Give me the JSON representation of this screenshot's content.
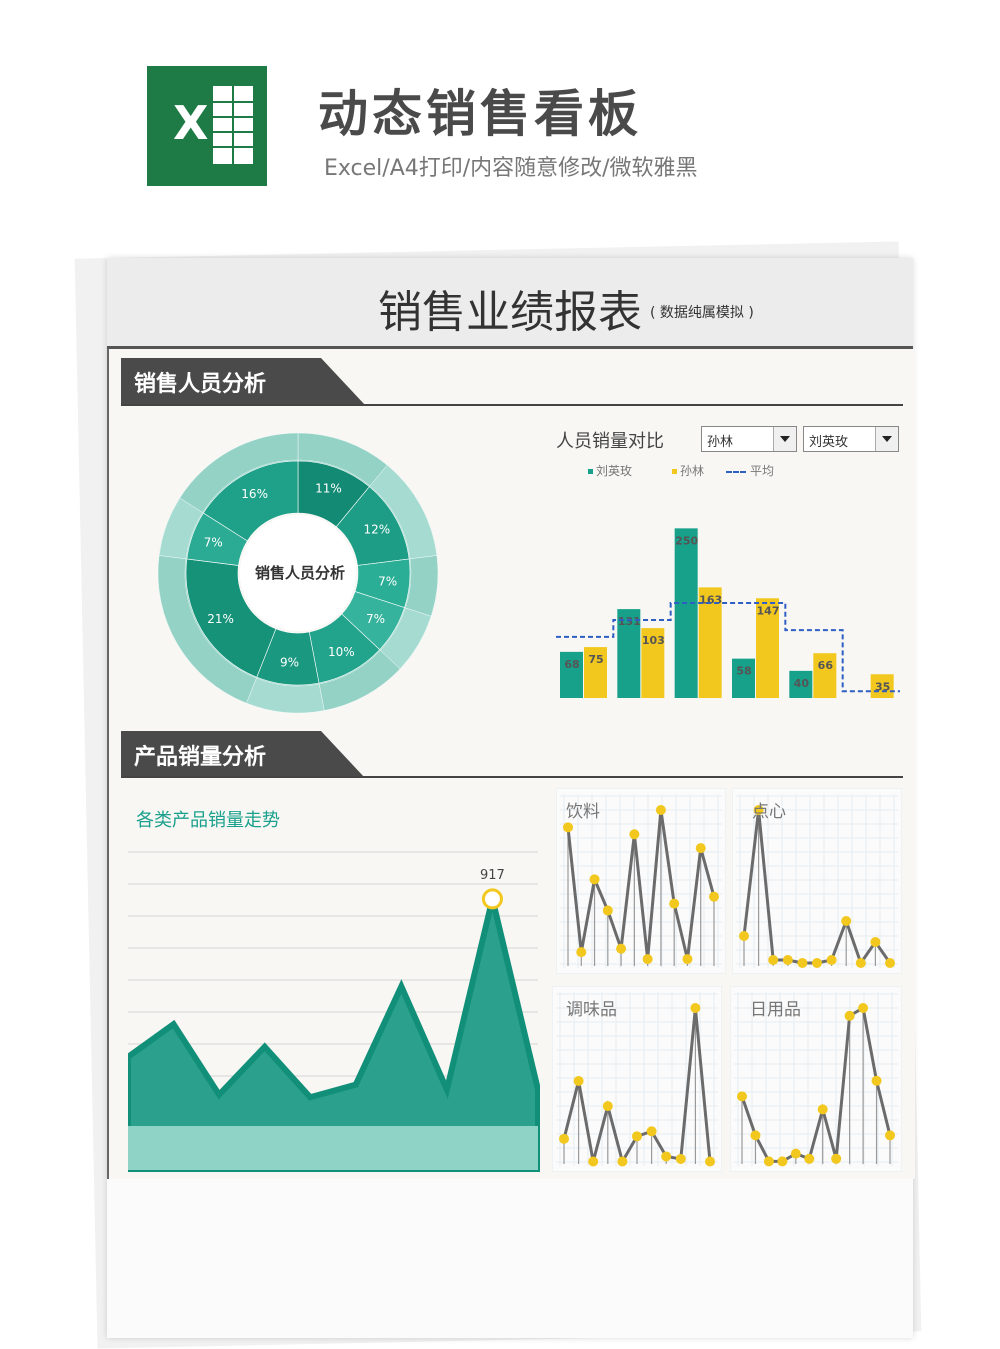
{
  "header": {
    "logo_letter": "X",
    "title": "动态销售看板",
    "subtitle": "Excel/A4打印/内容随意修改/微软雅黑"
  },
  "report": {
    "title": "销售业绩报表",
    "note": "( 数据纯属模拟 )"
  },
  "sections": {
    "staff": "销售人员分析",
    "product": "产品销量分析"
  },
  "colors": {
    "teal": "#17a08a",
    "yellow": "#f2c81f",
    "avg_line": "#2f5fc4",
    "section_bar": "#4a4a4a"
  },
  "chart_data": [
    {
      "type": "pie",
      "center_label": "销售人员分析",
      "values": [
        11,
        12,
        7,
        7,
        10,
        9,
        21,
        7,
        16
      ],
      "labels": [
        "11%",
        "12%",
        "7%",
        "7%",
        "10%",
        "9%",
        "21%",
        "7%",
        "16%"
      ]
    },
    {
      "type": "bar",
      "title": "人员销量对比",
      "selectors": [
        "孙林",
        "刘英玫"
      ],
      "series": [
        {
          "name": "刘英玫",
          "values": [
            68,
            131,
            250,
            58,
            40,
            0
          ]
        },
        {
          "name": "孙林",
          "values": [
            75,
            103,
            163,
            147,
            66,
            35
          ]
        },
        {
          "name": "平均",
          "values": [
            90,
            115,
            140,
            140,
            100,
            10
          ]
        }
      ],
      "value_labels": {
        "刘英玫": [
          "68",
          "131",
          "250",
          "58",
          "40",
          ""
        ],
        "孙林": [
          "75",
          "103",
          "163",
          "147",
          "66",
          "35"
        ]
      },
      "ylim": [
        0,
        280
      ]
    },
    {
      "type": "area",
      "title": "各类产品销量走势",
      "values": [
        290,
        420,
        140,
        330,
        130,
        180,
        570,
        160,
        917,
        160
      ],
      "peak_label": "917",
      "ylim": [
        0,
        1000
      ]
    },
    {
      "type": "line",
      "title": "饮料",
      "values": [
        40,
        4,
        25,
        16,
        5,
        38,
        2,
        45,
        18,
        2,
        34,
        20
      ]
    },
    {
      "type": "line",
      "title": "点心",
      "values": [
        10,
        52,
        2,
        2,
        1,
        1,
        2,
        15,
        1,
        8,
        1
      ]
    },
    {
      "type": "line",
      "title": "调味品",
      "values": [
        10,
        33,
        1,
        23,
        1,
        11,
        13,
        3,
        2,
        62,
        1
      ]
    },
    {
      "type": "line",
      "title": "日用品",
      "values": [
        26,
        11,
        1,
        1,
        4,
        2,
        21,
        2,
        57,
        60,
        32,
        11
      ]
    }
  ]
}
